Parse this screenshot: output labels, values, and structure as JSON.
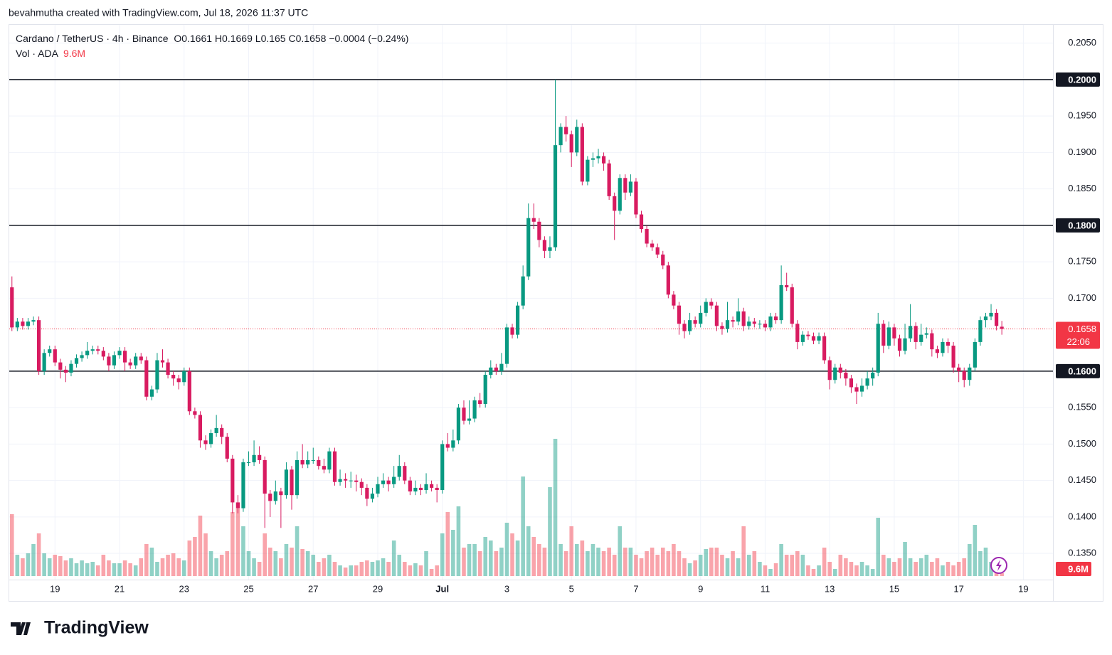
{
  "caption": "bevahmutha created with TradingView.com, Jul 18, 2026 11:37 UTC",
  "brand": "TradingView",
  "chart_data": {
    "type": "candlestick",
    "title": "Cardano / TetherUS · 4h · Binance",
    "ohlc_prefixes": [
      "O",
      "H",
      "L",
      "C"
    ],
    "change_label": "−0.0004",
    "change_pct_label": "(−0.24%)",
    "volume_title": "Vol · ADA",
    "volume_last_label": "9.6M",
    "countdown": "22:06",
    "up_color": "#089981",
    "down_color": "#d81b60",
    "volume_up_color": "rgba(8,153,129,0.45)",
    "volume_down_color": "rgba(242,54,69,0.45)",
    "grid": true,
    "xlim": [
      -0.5,
      193.5
    ],
    "ylim": [
      0.1317,
      0.2075
    ],
    "xticks": [
      {
        "value": 8,
        "label": "19"
      },
      {
        "value": 20,
        "label": "21"
      },
      {
        "value": 32,
        "label": "23"
      },
      {
        "value": 44,
        "label": "25"
      },
      {
        "value": 56,
        "label": "27"
      },
      {
        "value": 68,
        "label": "29"
      },
      {
        "value": 80,
        "label": "Jul"
      },
      {
        "value": 92,
        "label": "3"
      },
      {
        "value": 104,
        "label": "5"
      },
      {
        "value": 116,
        "label": "7"
      },
      {
        "value": 128,
        "label": "9"
      },
      {
        "value": 140,
        "label": "11"
      },
      {
        "value": 152,
        "label": "13"
      },
      {
        "value": 164,
        "label": "15"
      },
      {
        "value": 176,
        "label": "17"
      },
      {
        "value": 188,
        "label": "19"
      }
    ],
    "yticks": [
      {
        "value": 0.205,
        "label": "0.2050"
      },
      {
        "value": 0.195,
        "label": "0.1950"
      },
      {
        "value": 0.19,
        "label": "0.1900"
      },
      {
        "value": 0.185,
        "label": "0.1850"
      },
      {
        "value": 0.175,
        "label": "0.1750"
      },
      {
        "value": 0.17,
        "label": "0.1700"
      },
      {
        "value": 0.155,
        "label": "0.1550"
      },
      {
        "value": 0.15,
        "label": "0.1500"
      },
      {
        "value": 0.145,
        "label": "0.1450"
      },
      {
        "value": 0.14,
        "label": "0.1400"
      },
      {
        "value": 0.135,
        "label": "0.1350"
      }
    ],
    "hlines": [
      {
        "value": 0.2,
        "label": "0.2000"
      },
      {
        "value": 0.18,
        "label": "0.1800"
      },
      {
        "value": 0.16,
        "label": "0.1600"
      }
    ],
    "candles": [
      [
        0.1715,
        0.173,
        0.1655,
        0.166
      ],
      [
        0.166,
        0.1673,
        0.1655,
        0.1668
      ],
      [
        0.1668,
        0.1673,
        0.1657,
        0.1662
      ],
      [
        0.1662,
        0.1673,
        0.1657,
        0.1668
      ],
      [
        0.1668,
        0.1675,
        0.1663,
        0.167
      ],
      [
        0.167,
        0.1675,
        0.1595,
        0.16
      ],
      [
        0.16,
        0.163,
        0.1595,
        0.1625
      ],
      [
        0.1625,
        0.1635,
        0.162,
        0.163
      ],
      [
        0.163,
        0.1635,
        0.1607,
        0.1612
      ],
      [
        0.1612,
        0.1617,
        0.159,
        0.1602
      ],
      [
        0.1602,
        0.1607,
        0.1585,
        0.1598
      ],
      [
        0.1598,
        0.1615,
        0.1593,
        0.161
      ],
      [
        0.161,
        0.1623,
        0.1605,
        0.1618
      ],
      [
        0.1618,
        0.1627,
        0.1613,
        0.1622
      ],
      [
        0.1622,
        0.164,
        0.1617,
        0.1628
      ],
      [
        0.1628,
        0.1635,
        0.1623,
        0.163
      ],
      [
        0.163,
        0.1635,
        0.1623,
        0.1628
      ],
      [
        0.1628,
        0.1633,
        0.1615,
        0.162
      ],
      [
        0.162,
        0.1625,
        0.16,
        0.1608
      ],
      [
        0.1608,
        0.1627,
        0.1603,
        0.1622
      ],
      [
        0.1622,
        0.1633,
        0.1617,
        0.1628
      ],
      [
        0.1628,
        0.1633,
        0.16,
        0.1612
      ],
      [
        0.1612,
        0.1617,
        0.1603,
        0.1608
      ],
      [
        0.1608,
        0.1625,
        0.1603,
        0.162
      ],
      [
        0.162,
        0.1625,
        0.161,
        0.1615
      ],
      [
        0.1615,
        0.162,
        0.156,
        0.1565
      ],
      [
        0.1565,
        0.158,
        0.156,
        0.1575
      ],
      [
        0.1575,
        0.1625,
        0.157,
        0.1615
      ],
      [
        0.1615,
        0.163,
        0.1605,
        0.1612
      ],
      [
        0.1612,
        0.1617,
        0.159,
        0.1595
      ],
      [
        0.1595,
        0.16,
        0.158,
        0.159
      ],
      [
        0.159,
        0.1595,
        0.1575,
        0.1585
      ],
      [
        0.1585,
        0.1605,
        0.158,
        0.16
      ],
      [
        0.16,
        0.1605,
        0.154,
        0.1545
      ],
      [
        0.1545,
        0.155,
        0.1535,
        0.154
      ],
      [
        0.154,
        0.1545,
        0.1495,
        0.1505
      ],
      [
        0.1505,
        0.1512,
        0.1492,
        0.15
      ],
      [
        0.15,
        0.152,
        0.1495,
        0.1515
      ],
      [
        0.1515,
        0.154,
        0.151,
        0.1522
      ],
      [
        0.1522,
        0.1527,
        0.15,
        0.151
      ],
      [
        0.151,
        0.1515,
        0.1475,
        0.148
      ],
      [
        0.148,
        0.1485,
        0.1405,
        0.142
      ],
      [
        0.142,
        0.143,
        0.1405,
        0.1412
      ],
      [
        0.1412,
        0.148,
        0.1407,
        0.1475
      ],
      [
        0.1475,
        0.149,
        0.147,
        0.1475
      ],
      [
        0.1475,
        0.1505,
        0.147,
        0.1485
      ],
      [
        0.1485,
        0.1497,
        0.1473,
        0.1478
      ],
      [
        0.1478,
        0.1483,
        0.1385,
        0.1432
      ],
      [
        0.1432,
        0.1437,
        0.14,
        0.1422
      ],
      [
        0.1422,
        0.145,
        0.1417,
        0.1435
      ],
      [
        0.1435,
        0.144,
        0.1385,
        0.143
      ],
      [
        0.143,
        0.1475,
        0.1425,
        0.1465
      ],
      [
        0.1465,
        0.147,
        0.141,
        0.143
      ],
      [
        0.143,
        0.149,
        0.1425,
        0.1478
      ],
      [
        0.1478,
        0.15,
        0.1467,
        0.1472
      ],
      [
        0.1472,
        0.149,
        0.1467,
        0.1478
      ],
      [
        0.1478,
        0.1495,
        0.1473,
        0.1478
      ],
      [
        0.1478,
        0.1483,
        0.1465,
        0.147
      ],
      [
        0.147,
        0.148,
        0.146,
        0.1465
      ],
      [
        0.1465,
        0.1495,
        0.146,
        0.149
      ],
      [
        0.149,
        0.1495,
        0.1443,
        0.1448
      ],
      [
        0.1448,
        0.1465,
        0.1443,
        0.1452
      ],
      [
        0.1452,
        0.146,
        0.144,
        0.145
      ],
      [
        0.145,
        0.1462,
        0.144,
        0.145
      ],
      [
        0.145,
        0.1458,
        0.1435,
        0.1448
      ],
      [
        0.1448,
        0.1453,
        0.143,
        0.144
      ],
      [
        0.144,
        0.1445,
        0.1415,
        0.1425
      ],
      [
        0.1425,
        0.144,
        0.142,
        0.1432
      ],
      [
        0.1432,
        0.1455,
        0.1427,
        0.1445
      ],
      [
        0.1445,
        0.146,
        0.144,
        0.145
      ],
      [
        0.145,
        0.1455,
        0.1435,
        0.1445
      ],
      [
        0.1445,
        0.147,
        0.144,
        0.1455
      ],
      [
        0.1455,
        0.1485,
        0.145,
        0.147
      ],
      [
        0.147,
        0.1475,
        0.1445,
        0.145
      ],
      [
        0.145,
        0.1455,
        0.143,
        0.1435
      ],
      [
        0.1435,
        0.145,
        0.143,
        0.144
      ],
      [
        0.144,
        0.1445,
        0.143,
        0.1437
      ],
      [
        0.1437,
        0.146,
        0.1432,
        0.1445
      ],
      [
        0.1445,
        0.145,
        0.1435,
        0.144
      ],
      [
        0.144,
        0.1445,
        0.142,
        0.1437
      ],
      [
        0.1437,
        0.1505,
        0.1432,
        0.15
      ],
      [
        0.15,
        0.1515,
        0.149,
        0.1495
      ],
      [
        0.1495,
        0.152,
        0.149,
        0.1505
      ],
      [
        0.1505,
        0.1555,
        0.15,
        0.155
      ],
      [
        0.155,
        0.156,
        0.1527,
        0.1532
      ],
      [
        0.1532,
        0.156,
        0.1527,
        0.1535
      ],
      [
        0.1535,
        0.1565,
        0.153,
        0.156
      ],
      [
        0.156,
        0.157,
        0.155,
        0.1555
      ],
      [
        0.1555,
        0.16,
        0.155,
        0.1595
      ],
      [
        0.1595,
        0.1615,
        0.159,
        0.1605
      ],
      [
        0.1605,
        0.161,
        0.1595,
        0.16
      ],
      [
        0.16,
        0.1625,
        0.1595,
        0.161
      ],
      [
        0.161,
        0.1665,
        0.1605,
        0.166
      ],
      [
        0.166,
        0.1665,
        0.1645,
        0.165
      ],
      [
        0.165,
        0.1695,
        0.1645,
        0.169
      ],
      [
        0.169,
        0.1745,
        0.1685,
        0.173
      ],
      [
        0.173,
        0.183,
        0.1725,
        0.181
      ],
      [
        0.181,
        0.183,
        0.1795,
        0.1805
      ],
      [
        0.1805,
        0.181,
        0.177,
        0.178
      ],
      [
        0.178,
        0.1785,
        0.1755,
        0.1765
      ],
      [
        0.1765,
        0.1785,
        0.1755,
        0.177
      ],
      [
        0.177,
        0.2,
        0.1765,
        0.191
      ],
      [
        0.191,
        0.194,
        0.19,
        0.1935
      ],
      [
        0.1935,
        0.195,
        0.1915,
        0.1925
      ],
      [
        0.1925,
        0.193,
        0.188,
        0.19
      ],
      [
        0.19,
        0.1945,
        0.1895,
        0.1935
      ],
      [
        0.1935,
        0.194,
        0.1855,
        0.186
      ],
      [
        0.186,
        0.1895,
        0.1855,
        0.189
      ],
      [
        0.189,
        0.19,
        0.188,
        0.1892
      ],
      [
        0.1892,
        0.1905,
        0.1885,
        0.1895
      ],
      [
        0.1895,
        0.19,
        0.1875,
        0.1885
      ],
      [
        0.1885,
        0.189,
        0.1835,
        0.184
      ],
      [
        0.184,
        0.1845,
        0.178,
        0.182
      ],
      [
        0.182,
        0.187,
        0.1815,
        0.1865
      ],
      [
        0.1865,
        0.187,
        0.1835,
        0.1845
      ],
      [
        0.1845,
        0.187,
        0.184,
        0.186
      ],
      [
        0.186,
        0.1865,
        0.181,
        0.1815
      ],
      [
        0.1815,
        0.182,
        0.179,
        0.1795
      ],
      [
        0.1795,
        0.18,
        0.177,
        0.1775
      ],
      [
        0.1775,
        0.178,
        0.1765,
        0.177
      ],
      [
        0.177,
        0.1775,
        0.1755,
        0.176
      ],
      [
        0.176,
        0.1765,
        0.174,
        0.1745
      ],
      [
        0.1745,
        0.175,
        0.17,
        0.1705
      ],
      [
        0.1705,
        0.171,
        0.1685,
        0.169
      ],
      [
        0.169,
        0.1695,
        0.165,
        0.1665
      ],
      [
        0.1665,
        0.167,
        0.1645,
        0.1655
      ],
      [
        0.1655,
        0.168,
        0.165,
        0.167
      ],
      [
        0.167,
        0.1675,
        0.166,
        0.1665
      ],
      [
        0.1665,
        0.169,
        0.166,
        0.168
      ],
      [
        0.168,
        0.17,
        0.1675,
        0.1695
      ],
      [
        0.1695,
        0.17,
        0.1685,
        0.169
      ],
      [
        0.169,
        0.1695,
        0.1655,
        0.1662
      ],
      [
        0.1662,
        0.1667,
        0.165,
        0.1658
      ],
      [
        0.1658,
        0.1695,
        0.1653,
        0.167
      ],
      [
        0.167,
        0.1675,
        0.166,
        0.1668
      ],
      [
        0.1668,
        0.17,
        0.1663,
        0.1682
      ],
      [
        0.1682,
        0.1687,
        0.1655,
        0.1662
      ],
      [
        0.1662,
        0.1675,
        0.1657,
        0.1668
      ],
      [
        0.1668,
        0.1673,
        0.166,
        0.1665
      ],
      [
        0.1665,
        0.167,
        0.1658,
        0.1665
      ],
      [
        0.1665,
        0.167,
        0.1655,
        0.166
      ],
      [
        0.166,
        0.168,
        0.1655,
        0.1675
      ],
      [
        0.1675,
        0.168,
        0.1665,
        0.167
      ],
      [
        0.167,
        0.1745,
        0.1665,
        0.1718
      ],
      [
        0.1718,
        0.1735,
        0.171,
        0.1715
      ],
      [
        0.1715,
        0.172,
        0.166,
        0.1665
      ],
      [
        0.1665,
        0.167,
        0.163,
        0.164
      ],
      [
        0.164,
        0.1655,
        0.1635,
        0.165
      ],
      [
        0.165,
        0.1655,
        0.1643,
        0.1648
      ],
      [
        0.1648,
        0.1653,
        0.1637,
        0.1642
      ],
      [
        0.1642,
        0.1653,
        0.1637,
        0.1648
      ],
      [
        0.1648,
        0.1653,
        0.161,
        0.1615
      ],
      [
        0.1615,
        0.162,
        0.1575,
        0.1588
      ],
      [
        0.1588,
        0.161,
        0.1583,
        0.1605
      ],
      [
        0.1605,
        0.161,
        0.159,
        0.1598
      ],
      [
        0.1598,
        0.1603,
        0.158,
        0.159
      ],
      [
        0.159,
        0.1595,
        0.157,
        0.1578
      ],
      [
        0.1578,
        0.1583,
        0.1555,
        0.1572
      ],
      [
        0.1572,
        0.159,
        0.1565,
        0.158
      ],
      [
        0.158,
        0.16,
        0.1575,
        0.159
      ],
      [
        0.159,
        0.1605,
        0.158,
        0.1598
      ],
      [
        0.1598,
        0.168,
        0.1593,
        0.1665
      ],
      [
        0.1665,
        0.167,
        0.1625,
        0.1635
      ],
      [
        0.1635,
        0.1668,
        0.163,
        0.166
      ],
      [
        0.166,
        0.1665,
        0.1635,
        0.1645
      ],
      [
        0.1645,
        0.165,
        0.162,
        0.1628
      ],
      [
        0.1628,
        0.1665,
        0.1623,
        0.1645
      ],
      [
        0.1645,
        0.1692,
        0.164,
        0.1662
      ],
      [
        0.1662,
        0.1667,
        0.163,
        0.164
      ],
      [
        0.164,
        0.1665,
        0.1635,
        0.165
      ],
      [
        0.165,
        0.166,
        0.1645,
        0.1652
      ],
      [
        0.1652,
        0.1657,
        0.162,
        0.163
      ],
      [
        0.163,
        0.1635,
        0.1618,
        0.1625
      ],
      [
        0.1625,
        0.1645,
        0.162,
        0.164
      ],
      [
        0.164,
        0.1645,
        0.1625,
        0.1635
      ],
      [
        0.1635,
        0.164,
        0.1598,
        0.1605
      ],
      [
        0.1605,
        0.161,
        0.1585,
        0.16
      ],
      [
        0.16,
        0.1605,
        0.1578,
        0.1588
      ],
      [
        0.1588,
        0.161,
        0.158,
        0.1605
      ],
      [
        0.1605,
        0.1645,
        0.16,
        0.164
      ],
      [
        0.164,
        0.1675,
        0.1635,
        0.167
      ],
      [
        0.167,
        0.168,
        0.166,
        0.1675
      ],
      [
        0.1675,
        0.1692,
        0.167,
        0.168
      ],
      [
        0.168,
        0.1685,
        0.1656,
        0.1662
      ],
      [
        0.1661,
        0.1669,
        0.165,
        0.1658
      ]
    ],
    "volume": [
      208.8,
      72,
      60,
      76.8,
      108,
      144,
      76.8,
      60,
      72,
      67.2,
      52.8,
      60,
      43.2,
      52.8,
      43.2,
      48,
      36,
      72,
      52.8,
      43.2,
      43.2,
      52.8,
      43.2,
      36,
      60,
      108,
      96,
      48,
      60,
      72,
      76.8,
      60,
      52.8,
      120,
      132,
      204,
      144,
      84,
      60,
      72,
      84,
      216,
      228,
      168,
      84,
      60,
      48,
      144,
      96,
      84,
      60,
      108,
      96,
      168,
      91.2,
      84,
      72,
      48,
      60,
      72,
      48,
      36,
      28.8,
      36,
      36,
      48,
      52.8,
      48,
      52.8,
      60,
      48,
      120,
      72,
      48,
      36,
      43.2,
      36,
      84,
      24,
      36,
      144,
      216,
      156,
      235.2,
      96,
      108,
      108,
      84,
      132,
      120,
      84,
      96,
      180,
      144,
      120,
      336,
      168,
      132,
      108,
      96,
      300,
      463.2,
      108,
      84,
      168,
      108,
      120,
      84,
      108,
      96,
      84,
      96,
      72,
      168,
      96,
      96,
      72,
      60,
      84,
      96,
      72,
      96,
      84,
      108,
      84,
      60,
      43.2,
      52.8,
      72,
      91.2,
      96,
      96,
      72,
      60,
      84,
      60,
      168,
      72,
      84,
      48,
      36,
      24,
      43.2,
      108,
      72,
      72,
      84,
      72,
      36,
      24,
      36,
      96,
      48,
      24,
      72,
      60,
      48,
      36,
      48,
      36,
      24,
      196.8,
      72,
      60,
      48,
      60,
      115.2,
      60,
      48,
      60,
      72,
      48,
      60,
      36,
      48,
      36,
      48,
      60,
      108,
      172.8,
      84,
      96,
      48,
      36,
      9.6
    ]
  }
}
